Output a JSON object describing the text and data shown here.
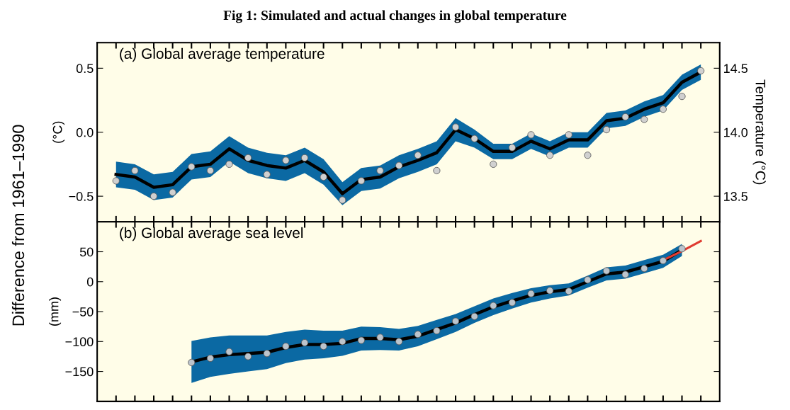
{
  "chart_data": [
    {
      "type": "line",
      "title": "Fig 1: Simulated and actual changes in global temperature",
      "ylabel": "(°C)",
      "y2label": "Temperature (°C)",
      "annotations": [
        "(a) Global average temperature",
        "Difference from 1961–1990"
      ],
      "tick_labels": "y",
      "categories": [
        null,
        null,
        null,
        null,
        null,
        null,
        null,
        null,
        null,
        null,
        null,
        null,
        null,
        null,
        null,
        null,
        null,
        null,
        null,
        null,
        null,
        null,
        null,
        null,
        null,
        null,
        null,
        null,
        null,
        null,
        null,
        null
      ],
      "ylim": [
        -0.7,
        0.7
      ],
      "yticks": [
        {
          "value": -0.5,
          "label": "−0.5"
        },
        {
          "value": 0,
          "label": "0.0"
        },
        {
          "value": 0.5,
          "label": "0.5"
        }
      ],
      "y2lim": [
        13.3,
        14.7
      ],
      "y2ticks": [
        {
          "value": 13.5,
          "label": "13.5"
        },
        {
          "value": 14.0,
          "label": "14.0"
        },
        {
          "value": 14.5,
          "label": "14.5"
        }
      ],
      "series": [
        {
          "color": "#000000",
          "values": [
            -0.33,
            -0.35,
            -0.43,
            -0.41,
            -0.27,
            -0.25,
            -0.13,
            -0.22,
            -0.26,
            -0.28,
            -0.22,
            -0.31,
            -0.48,
            -0.37,
            -0.35,
            -0.27,
            -0.22,
            -0.16,
            0.02,
            -0.05,
            -0.15,
            -0.15,
            -0.07,
            -0.13,
            -0.06,
            -0.06,
            0.09,
            0.11,
            0.18,
            0.23,
            0.39,
            0.47
          ],
          "lower": [
            -0.43,
            -0.45,
            -0.53,
            -0.51,
            -0.37,
            -0.35,
            -0.23,
            -0.32,
            -0.36,
            -0.38,
            -0.32,
            -0.41,
            -0.57,
            -0.46,
            -0.44,
            -0.36,
            -0.31,
            -0.25,
            -0.07,
            -0.12,
            -0.21,
            -0.21,
            -0.13,
            -0.19,
            -0.12,
            -0.12,
            0.03,
            0.05,
            0.12,
            0.17,
            0.33,
            0.41
          ],
          "upper": [
            -0.23,
            -0.25,
            -0.33,
            -0.31,
            -0.17,
            -0.15,
            -0.03,
            -0.12,
            -0.16,
            -0.18,
            -0.12,
            -0.21,
            -0.39,
            -0.28,
            -0.26,
            -0.18,
            -0.13,
            -0.07,
            0.11,
            0.02,
            -0.09,
            -0.09,
            -0.01,
            -0.07,
            0.0,
            0.0,
            0.15,
            0.17,
            0.24,
            0.29,
            0.45,
            0.53
          ]
        },
        {
          "type": "scatter",
          "color": "#d0d0d0",
          "values": [
            -0.38,
            -0.3,
            -0.5,
            -0.47,
            -0.27,
            -0.3,
            -0.25,
            -0.2,
            -0.33,
            -0.22,
            -0.2,
            -0.35,
            -0.53,
            -0.38,
            -0.3,
            -0.26,
            -0.18,
            -0.3,
            0.04,
            -0.05,
            -0.25,
            -0.12,
            -0.02,
            -0.18,
            -0.02,
            -0.18,
            0.02,
            0.12,
            0.1,
            0.18,
            0.28,
            0.48
          ]
        }
      ]
    },
    {
      "type": "line",
      "ylabel": "(mm)",
      "annotations": [
        "(b) Global average sea level"
      ],
      "tick_labels": "y",
      "categories": [
        null,
        null,
        null,
        null,
        null,
        null,
        null,
        null,
        null,
        null,
        null,
        null,
        null,
        null,
        null,
        null,
        null,
        null,
        null,
        null,
        null,
        null,
        null,
        null,
        null,
        null,
        null,
        null,
        null,
        null,
        null,
        null
      ],
      "ylim": [
        -200,
        100
      ],
      "yticks": [
        {
          "value": -150,
          "label": "−150"
        },
        {
          "value": -100,
          "label": "−100"
        },
        {
          "value": -50,
          "label": "−50"
        },
        0,
        50
      ],
      "series": [
        {
          "color": "#000000",
          "values": [
            null,
            null,
            null,
            null,
            -134,
            -126,
            -122,
            -120,
            -118,
            -110,
            -105,
            -105,
            -103,
            -95,
            -95,
            -97,
            -91,
            -80,
            -69,
            -55,
            -42,
            -32,
            -23,
            -17,
            -13,
            0,
            13,
            16,
            25,
            34,
            53,
            null
          ],
          "lower": [
            null,
            null,
            null,
            null,
            -169,
            -159,
            -154,
            -150,
            -146,
            -136,
            -130,
            -128,
            -124,
            -115,
            -114,
            -115,
            -108,
            -96,
            -84,
            -69,
            -56,
            -45,
            -35,
            -28,
            -23,
            -10,
            2,
            5,
            14,
            23,
            43,
            null
          ],
          "upper": [
            null,
            null,
            null,
            null,
            -99,
            -93,
            -90,
            -90,
            -90,
            -84,
            -80,
            -82,
            -82,
            -75,
            -76,
            -79,
            -74,
            -64,
            -54,
            -41,
            -28,
            -19,
            -11,
            -6,
            -3,
            10,
            24,
            27,
            36,
            45,
            63,
            null
          ]
        },
        {
          "type": "scatter",
          "color": "#bcc4cc",
          "values": [
            null,
            null,
            null,
            null,
            -135,
            -128,
            -117,
            -125,
            -120,
            -108,
            -102,
            -108,
            -100,
            -98,
            -93,
            -100,
            -88,
            -82,
            -66,
            -58,
            -40,
            -35,
            -20,
            -15,
            -16,
            3,
            18,
            12,
            22,
            35,
            55,
            null
          ]
        },
        {
          "color": "#e03c31",
          "values": [
            null,
            null,
            null,
            null,
            null,
            null,
            null,
            null,
            null,
            null,
            null,
            null,
            null,
            null,
            null,
            null,
            null,
            null,
            null,
            null,
            null,
            null,
            null,
            null,
            null,
            null,
            null,
            null,
            null,
            36,
            51,
            68
          ]
        }
      ]
    }
  ]
}
